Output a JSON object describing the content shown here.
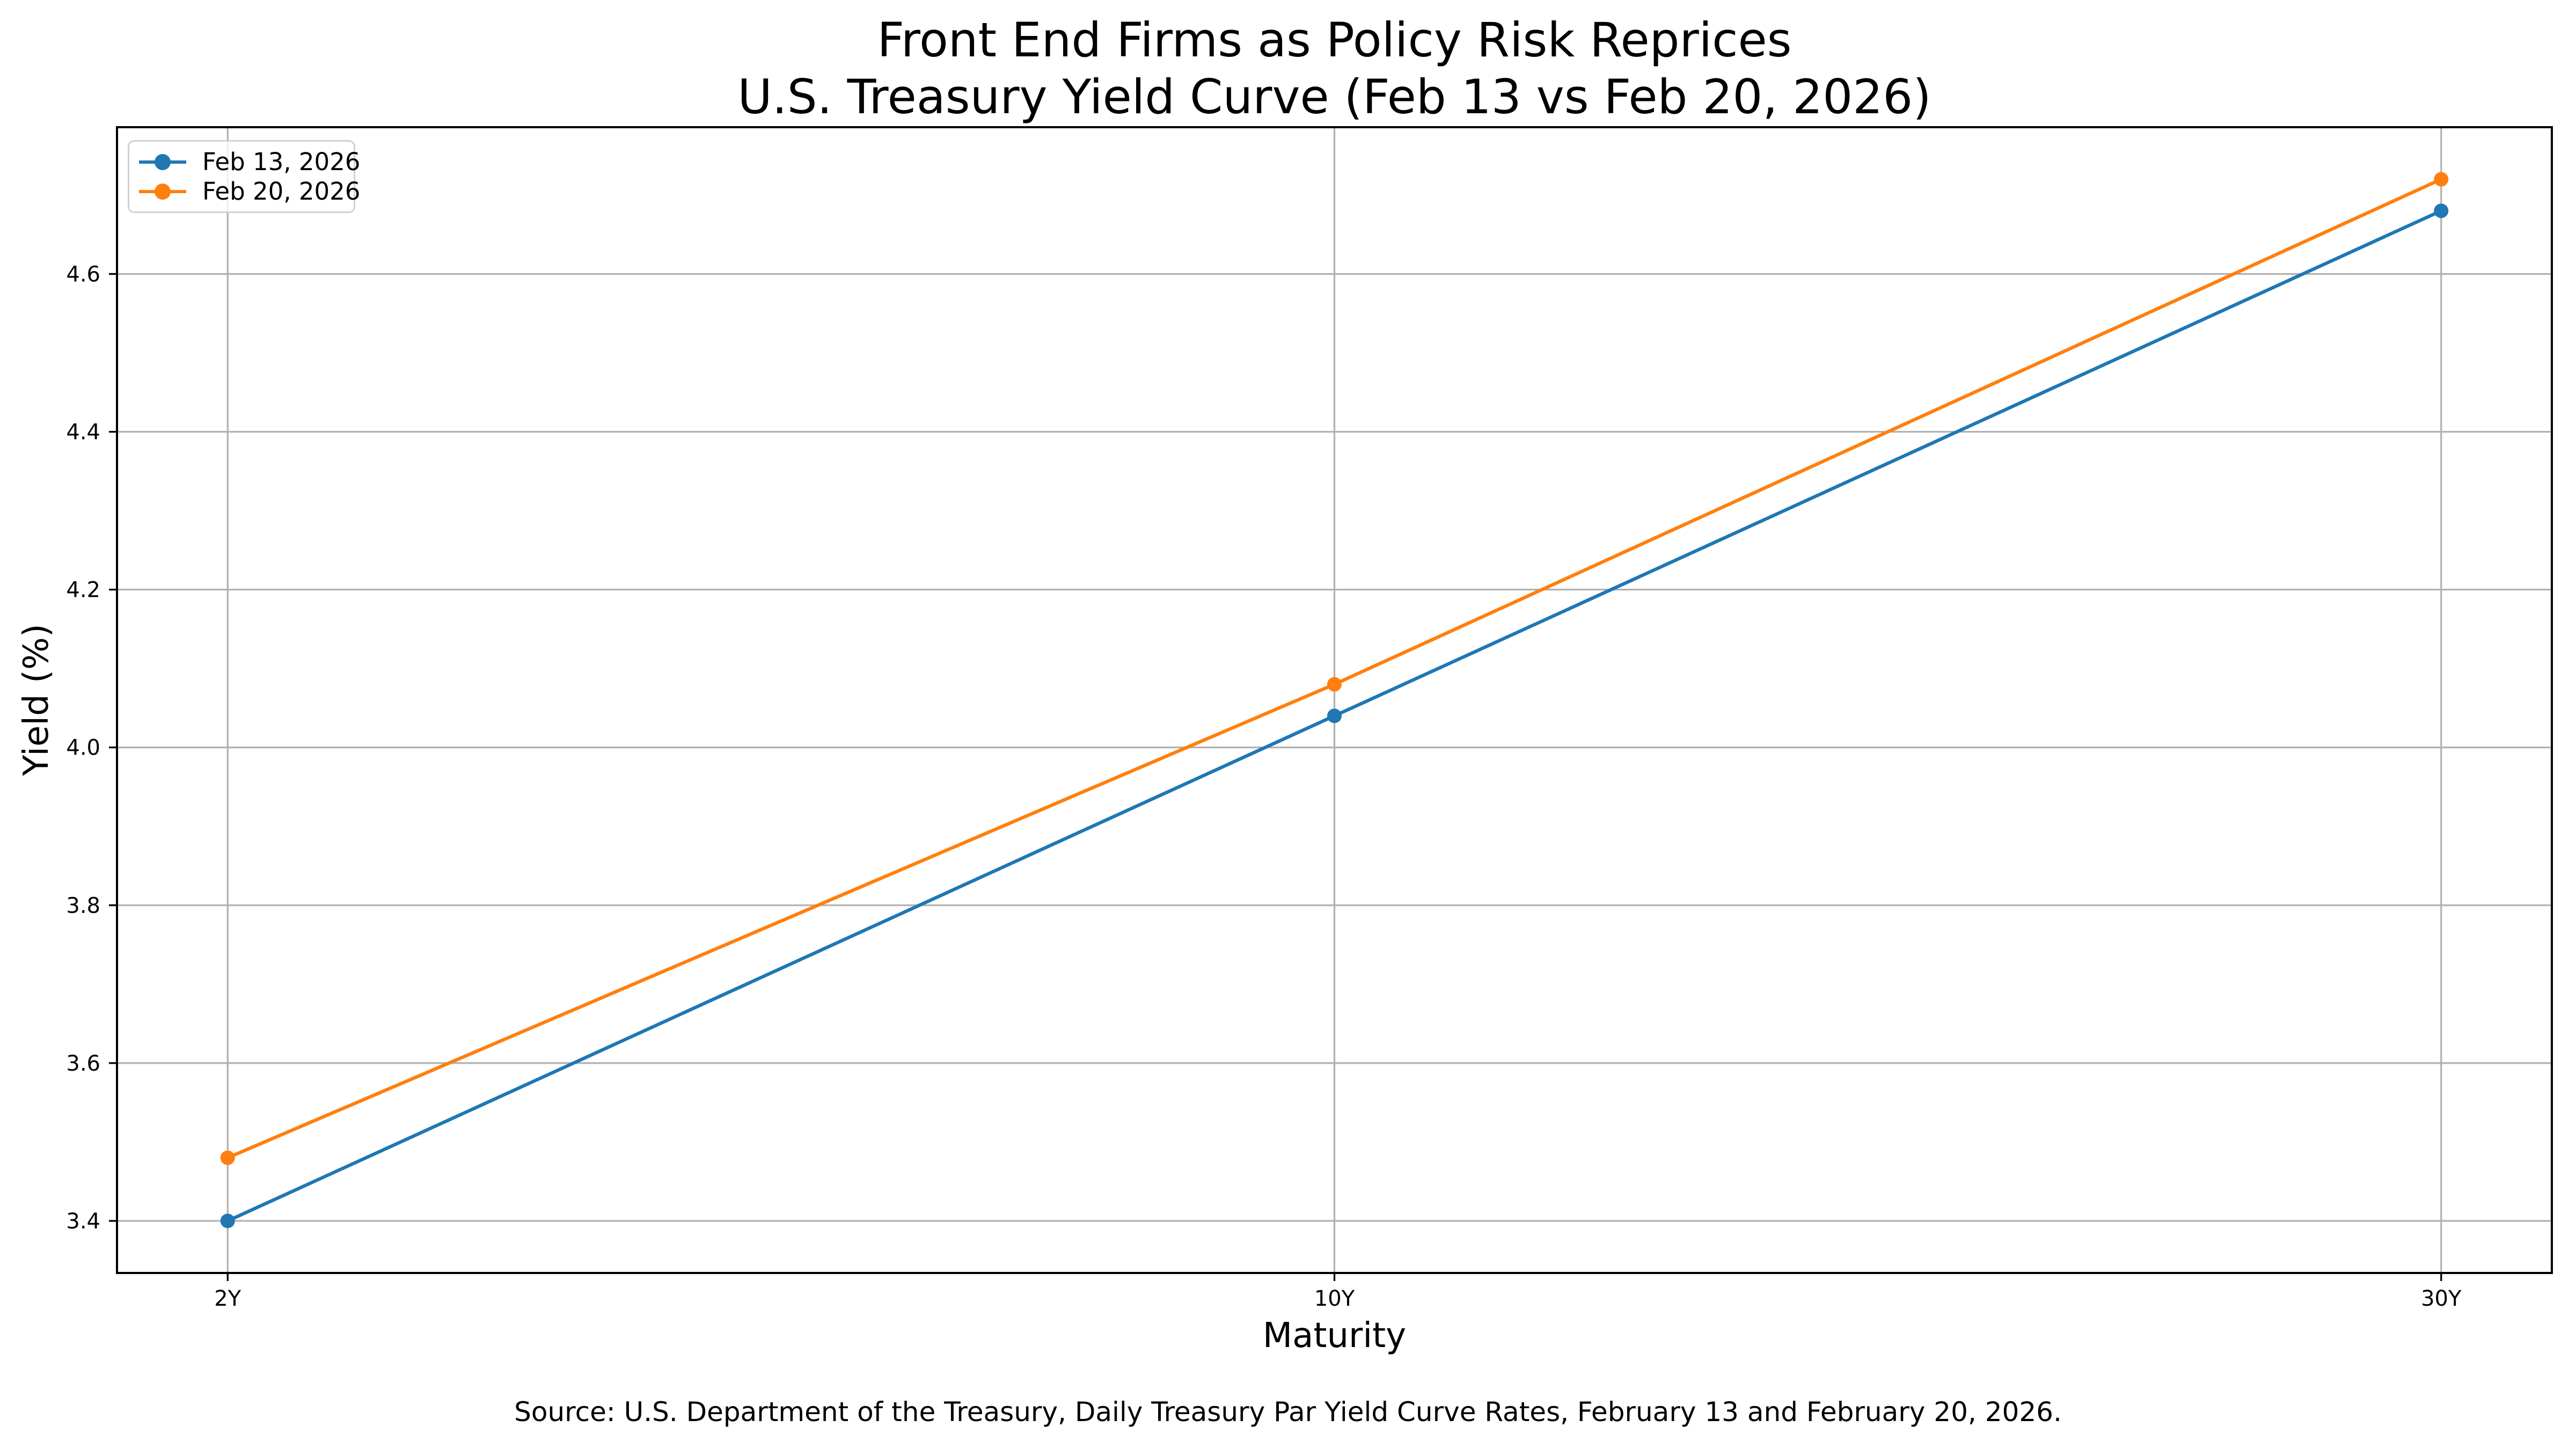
{
  "chart_data": {
    "type": "line",
    "title": "Front End Firms as Policy Risk Reprices\nU.S. Treasury Yield Curve (Feb 13 vs Feb 20, 2026)",
    "xlabel": "Maturity",
    "ylabel": "Yield (%)",
    "categories": [
      "2Y",
      "10Y",
      "30Y"
    ],
    "series": [
      {
        "name": "Feb 13, 2026",
        "color": "#1f77b4",
        "values": [
          3.4,
          4.04,
          4.68
        ]
      },
      {
        "name": "Feb 20, 2026",
        "color": "#ff7f0e",
        "values": [
          3.48,
          4.08,
          4.72
        ]
      }
    ],
    "yticks": [
      3.4,
      3.6,
      3.8,
      4.0,
      4.2,
      4.4,
      4.6
    ],
    "ylim": [
      3.334,
      4.786
    ],
    "grid": true,
    "legend_position": "upper-left",
    "marker": "circle",
    "source": "Source: U.S. Department of the Treasury, Daily Treasury Par Yield Curve Rates, February 13 and February 20, 2026."
  },
  "colors": {
    "grid": "#b0b0b0",
    "axis": "#000000",
    "tick_label": "#000000",
    "legend_border": "#d2d2d2",
    "background": "#ffffff"
  }
}
